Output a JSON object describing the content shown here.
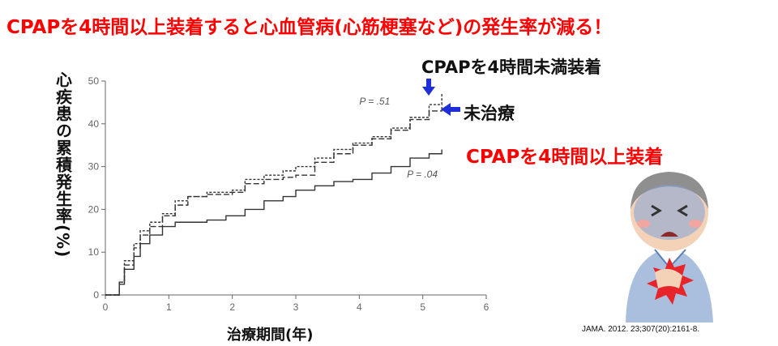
{
  "headline": "CPAPを4時間以上装着すると心血管病(心筋梗塞など)の発生率が減る！",
  "labels": {
    "short_use": "CPAPを4時間未満装着",
    "untreated": "未治療",
    "long_use": "CPAPを4時間以上装着"
  },
  "citation": "JAMA. 2012. 23;307(20):2161-8.",
  "colors": {
    "headline": "#ff0000",
    "arrow": "#1f2fd8",
    "curve": "#333333"
  },
  "chart_data": {
    "type": "line",
    "xlabel": "治療期間(年)",
    "ylabel": "心疾患の累積発生率(%)",
    "xlim": [
      0,
      6
    ],
    "ylim": [
      0,
      50
    ],
    "xticks": [
      0,
      1,
      2,
      3,
      4,
      5,
      6
    ],
    "yticks": [
      0,
      10,
      20,
      30,
      40,
      50
    ],
    "annotations": [
      {
        "text": "P = .51",
        "x": 4.0,
        "y": 44.5
      },
      {
        "text": "P = .04",
        "x": 4.75,
        "y": 27.5
      }
    ],
    "series": [
      {
        "name": "CPAPを4時間未満装着",
        "style": "short-dash",
        "x": [
          0,
          0.15,
          0.22,
          0.3,
          0.45,
          0.55,
          0.7,
          0.9,
          1.1,
          1.3,
          1.6,
          2.0,
          2.2,
          2.5,
          2.8,
          3.0,
          3.3,
          3.6,
          3.9,
          4.2,
          4.5,
          4.8,
          5.1,
          5.3
        ],
        "values": [
          0,
          0,
          3,
          8,
          12,
          15,
          17,
          19,
          22,
          23,
          24,
          24.5,
          27,
          28,
          29,
          30,
          32,
          34,
          35.5,
          37,
          39,
          41.5,
          44.5,
          47
        ]
      },
      {
        "name": "未治療",
        "style": "long-dash",
        "x": [
          0,
          0.15,
          0.22,
          0.3,
          0.45,
          0.55,
          0.7,
          0.9,
          1.1,
          1.3,
          1.6,
          2.0,
          2.2,
          2.5,
          2.8,
          3.0,
          3.3,
          3.6,
          3.9,
          4.2,
          4.5,
          4.8,
          5.1,
          5.3
        ],
        "values": [
          0,
          0,
          3,
          7,
          11,
          14,
          16,
          18.5,
          21,
          23,
          23.5,
          24,
          26,
          27,
          27.5,
          28,
          31,
          33,
          35,
          36.5,
          38.5,
          41,
          43,
          44
        ]
      },
      {
        "name": "CPAPを4時間以上装着",
        "style": "solid",
        "x": [
          0,
          0.15,
          0.22,
          0.3,
          0.45,
          0.55,
          0.7,
          0.9,
          1.1,
          1.3,
          1.6,
          1.9,
          2.2,
          2.5,
          2.8,
          3.0,
          3.3,
          3.6,
          3.9,
          4.2,
          4.5,
          4.8,
          5.1,
          5.3
        ],
        "values": [
          0,
          0,
          2.5,
          6,
          9,
          12,
          14,
          16,
          17,
          17,
          17.5,
          18.5,
          20,
          22,
          23,
          24.5,
          25.5,
          26.5,
          27,
          28.5,
          30,
          32,
          33,
          34
        ]
      }
    ]
  }
}
